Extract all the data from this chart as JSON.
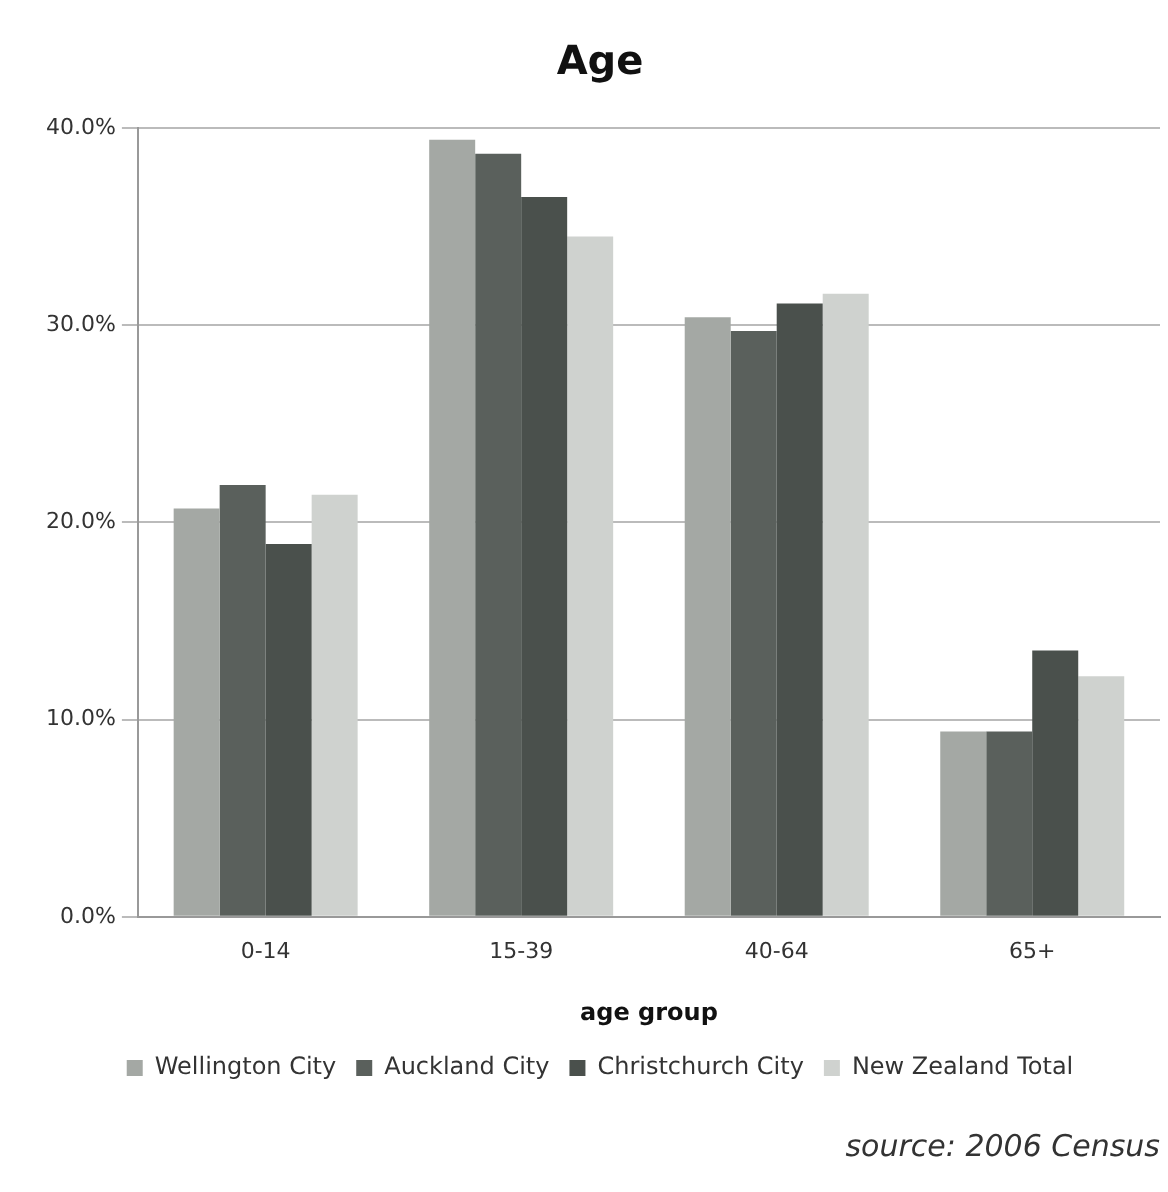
{
  "chart_data": {
    "type": "bar",
    "title": "Age",
    "xlabel": "age group",
    "categories": [
      "0-14",
      "15-39",
      "40-64",
      "65+"
    ],
    "series": [
      {
        "name": "Wellington City",
        "color": "#a4a8a4",
        "values": [
          20.7,
          39.4,
          30.4,
          9.4
        ]
      },
      {
        "name": "Auckland City",
        "color": "#5a605c",
        "values": [
          21.9,
          38.7,
          29.7,
          9.4
        ]
      },
      {
        "name": "Christchurch City",
        "color": "#4a504c",
        "values": [
          18.9,
          36.5,
          31.1,
          13.5
        ]
      },
      {
        "name": "New Zealand Total",
        "color": "#cfd2cf",
        "values": [
          21.4,
          34.5,
          31.6,
          12.2
        ]
      }
    ],
    "ylim": [
      0,
      40
    ],
    "yticks": [
      {
        "value": 0,
        "label": "0.0%"
      },
      {
        "value": 10,
        "label": "10.0%"
      },
      {
        "value": 20,
        "label": "20.0%"
      },
      {
        "value": 30,
        "label": "30.0%"
      },
      {
        "value": 40,
        "label": "40.0%"
      }
    ],
    "grid": "y",
    "legend": "bottom",
    "annotations": [
      "source: 2006 Census"
    ]
  }
}
